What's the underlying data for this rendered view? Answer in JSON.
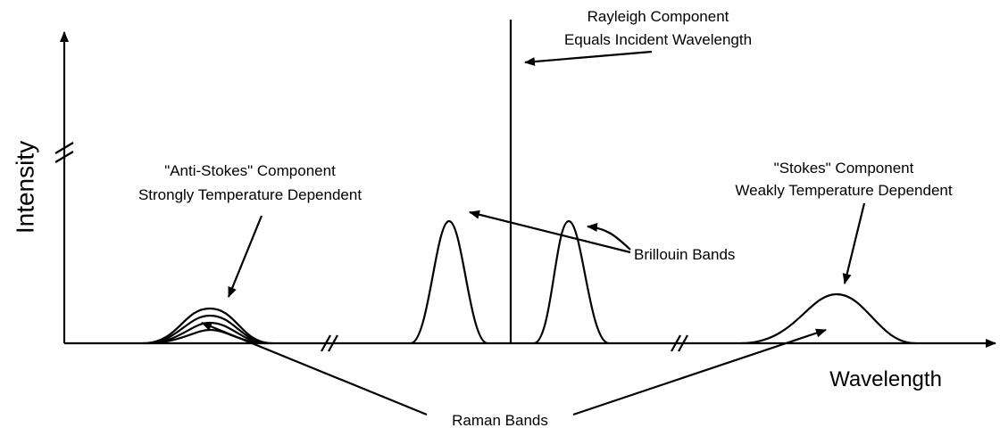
{
  "axes": {
    "y_label": "Intensity",
    "x_label": "Wavelength"
  },
  "labels": {
    "rayleigh": [
      "Rayleigh Component",
      "Equals Incident Wavelength"
    ],
    "anti_stokes": [
      "\"Anti-Stokes\" Component",
      "Strongly Temperature Dependent"
    ],
    "stokes": [
      "\"Stokes\" Component",
      "Weakly Temperature Dependent"
    ],
    "brillouin": "Brillouin Bands",
    "raman": "Raman Bands"
  }
}
